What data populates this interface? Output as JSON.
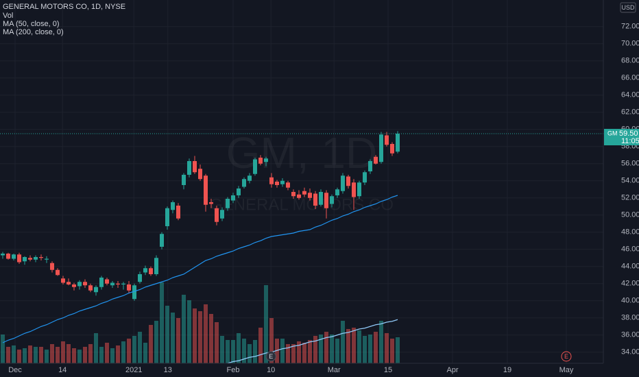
{
  "chart_data": {
    "type": "candlestick",
    "title": "GENERAL MOTORS CO, 1D, NYSE",
    "watermark": "GM, 1D",
    "watermark_subtitle": "GENERAL MOTORS CO",
    "currency": "USD",
    "up_color": "#26a69a",
    "down_color": "#ef5350",
    "grid": true,
    "xlim": [
      -0.5,
      109.5
    ],
    "xticks": [
      {
        "value": 2.25,
        "label": "Dec"
      },
      {
        "value": 10.9,
        "label": "14"
      },
      {
        "value": 23.9,
        "label": "2021"
      },
      {
        "value": 30.1,
        "label": "13"
      },
      {
        "value": 42,
        "label": "Feb"
      },
      {
        "value": 48.9,
        "label": "10"
      },
      {
        "value": 60.4,
        "label": "Mar"
      },
      {
        "value": 70.25,
        "label": "15"
      },
      {
        "value": 82,
        "label": "Apr"
      },
      {
        "value": 92,
        "label": "19"
      },
      {
        "value": 102.75,
        "label": "May"
      }
    ],
    "ylim": [
      31.5,
      75.1
    ],
    "yticks": [
      {
        "value": 34,
        "label": "34.00"
      },
      {
        "value": 36,
        "label": "36.00"
      },
      {
        "value": 38,
        "label": "38.00"
      },
      {
        "value": 40,
        "label": "40.00"
      },
      {
        "value": 42,
        "label": "42.00"
      },
      {
        "value": 44,
        "label": "44.00"
      },
      {
        "value": 46,
        "label": "46.00"
      },
      {
        "value": 48,
        "label": "48.00"
      },
      {
        "value": 50,
        "label": "50.00"
      },
      {
        "value": 52,
        "label": "52.00"
      },
      {
        "value": 54,
        "label": "54.00"
      },
      {
        "value": 56,
        "label": "56.00"
      },
      {
        "value": 58,
        "label": "58.00"
      },
      {
        "value": 60,
        "label": "60.00"
      },
      {
        "value": 62,
        "label": "62.00"
      },
      {
        "value": 64,
        "label": "64.00"
      },
      {
        "value": 66,
        "label": "66.00"
      },
      {
        "value": 68,
        "label": "68.00"
      },
      {
        "value": 70,
        "label": "70.00"
      },
      {
        "value": 72,
        "label": "72.00"
      }
    ],
    "open": [
      45.3,
      45.5,
      44.9,
      45.4,
      44.6,
      45.0,
      44.8,
      45.1,
      44.8,
      44.4,
      43.6,
      42.6,
      42.2,
      41.9,
      41.7,
      42.2,
      41.8,
      41.0,
      41.6,
      42.5,
      41.8,
      42.0,
      41.9,
      41.9,
      40.2,
      42.2,
      43.3,
      43.8,
      43.1,
      46.3,
      48.7,
      50.6,
      51.1,
      53.5,
      54.7,
      56.3,
      55.4,
      54.6,
      51.5,
      50.8,
      49.6,
      50.8,
      51.7,
      52.3,
      53.3,
      54.0,
      54.8,
      56.7,
      56.2,
      54.4,
      53.9,
      53.6,
      53.8,
      52.7,
      52.4,
      52.8,
      52.6,
      52.5,
      51.2,
      52.6,
      51.3,
      52.3,
      52.8,
      54.5,
      53.8,
      52.2,
      53.8,
      55.1,
      56.8,
      56.2,
      59.3,
      58.3,
      57.4
    ],
    "high": [
      45.7,
      45.6,
      45.5,
      45.6,
      45.2,
      45.3,
      45.3,
      45.4,
      45.2,
      44.6,
      43.8,
      42.9,
      42.6,
      42.1,
      42.4,
      42.5,
      42.0,
      41.8,
      42.9,
      42.7,
      42.3,
      42.3,
      42.2,
      42.3,
      42.0,
      43.4,
      44.1,
      44.0,
      45.3,
      48.0,
      51.0,
      51.7,
      51.4,
      54.9,
      56.6,
      56.9,
      55.9,
      54.8,
      51.9,
      51.1,
      50.9,
      52.1,
      52.6,
      53.4,
      54.4,
      54.9,
      56.7,
      57.0,
      56.8,
      54.9,
      54.1,
      54.3,
      54.0,
      53.0,
      52.9,
      53.2,
      53.1,
      52.8,
      53.0,
      52.9,
      52.4,
      53.2,
      54.9,
      54.7,
      54.2,
      54.0,
      55.2,
      56.5,
      57.0,
      59.7,
      59.7,
      58.5,
      59.8
    ],
    "low": [
      44.9,
      44.8,
      44.7,
      44.3,
      44.2,
      44.6,
      44.5,
      44.7,
      44.4,
      43.3,
      42.9,
      41.9,
      41.8,
      41.2,
      41.3,
      41.5,
      41.0,
      40.6,
      41.3,
      41.8,
      41.5,
      41.5,
      41.3,
      40.9,
      40.0,
      42.0,
      43.0,
      42.9,
      42.9,
      46.0,
      48.3,
      50.2,
      49.4,
      53.0,
      54.4,
      54.8,
      54.0,
      50.4,
      50.8,
      48.8,
      49.3,
      50.5,
      51.4,
      52.0,
      53.1,
      53.7,
      54.6,
      55.8,
      55.7,
      53.2,
      53.2,
      53.3,
      52.9,
      51.9,
      51.8,
      52.1,
      51.7,
      50.7,
      51.0,
      49.6,
      50.9,
      52.0,
      52.5,
      53.1,
      50.6,
      51.9,
      53.5,
      54.8,
      55.9,
      56.0,
      58.0,
      56.9,
      57.2
    ],
    "close": [
      45.5,
      44.9,
      45.4,
      44.5,
      45.1,
      44.8,
      45.1,
      45.0,
      44.9,
      43.6,
      43.0,
      42.1,
      41.9,
      41.6,
      42.2,
      41.8,
      41.2,
      41.6,
      42.7,
      42.0,
      42.1,
      41.9,
      42.0,
      41.2,
      41.8,
      43.1,
      43.8,
      43.1,
      45.0,
      47.8,
      50.8,
      51.5,
      49.6,
      54.7,
      56.3,
      55.0,
      54.2,
      51.2,
      51.3,
      49.2,
      50.6,
      51.9,
      52.3,
      53.1,
      54.2,
      54.6,
      56.5,
      56.0,
      56.6,
      53.6,
      53.5,
      54.0,
      53.2,
      52.2,
      52.0,
      52.4,
      52.0,
      51.1,
      52.7,
      50.8,
      52.2,
      53.0,
      54.6,
      53.4,
      52.1,
      53.8,
      55.0,
      56.3,
      56.0,
      59.4,
      58.2,
      57.2,
      59.5
    ],
    "volume": {
      "name": "Vol",
      "values": [
        21,
        12,
        13,
        10,
        11,
        13,
        12,
        12,
        10,
        14,
        12,
        16,
        14,
        11,
        10,
        12,
        14,
        22,
        12,
        15,
        11,
        13,
        16,
        18,
        20,
        23,
        15,
        28,
        31,
        59,
        42,
        37,
        33,
        50,
        46,
        40,
        38,
        43,
        36,
        30,
        20,
        17,
        17,
        22,
        18,
        14,
        17,
        26,
        57,
        33,
        18,
        18,
        14,
        14,
        16,
        15,
        17,
        20,
        21,
        23,
        21,
        18,
        31,
        25,
        26,
        24,
        20,
        21,
        23,
        31,
        22,
        18,
        19
      ]
    },
    "series": [
      {
        "name": "MA (50, close, 0)",
        "color": "#2196f3",
        "values": [
          35.1,
          35.4,
          35.6,
          35.9,
          36.2,
          36.4,
          36.7,
          37.0,
          37.2,
          37.5,
          37.8,
          38.0,
          38.3,
          38.5,
          38.8,
          39.0,
          39.2,
          39.4,
          39.7,
          39.9,
          40.2,
          40.4,
          40.6,
          40.9,
          41.1,
          41.3,
          41.6,
          41.8,
          42.0,
          42.2,
          42.4,
          42.7,
          42.9,
          43.1,
          43.5,
          43.9,
          44.3,
          44.7,
          44.9,
          45.2,
          45.4,
          45.6,
          45.8,
          46.1,
          46.3,
          46.5,
          46.8,
          47.0,
          47.3,
          47.5,
          47.6,
          47.7,
          47.8,
          47.9,
          48.1,
          48.2,
          48.3,
          48.6,
          48.8,
          49.1,
          49.4,
          49.6,
          49.9,
          50.1,
          50.4,
          50.6,
          50.9,
          51.1,
          51.3,
          51.6,
          51.8,
          52.1,
          52.3
        ]
      },
      {
        "name": "MA (200, close, 0)",
        "color": "#90caf9",
        "values": [
          null,
          null,
          null,
          null,
          null,
          null,
          null,
          null,
          null,
          null,
          null,
          null,
          null,
          null,
          null,
          null,
          null,
          null,
          null,
          null,
          null,
          null,
          null,
          null,
          null,
          null,
          null,
          null,
          null,
          null,
          null,
          null,
          null,
          null,
          null,
          null,
          null,
          null,
          null,
          null,
          null,
          32.7,
          32.9,
          33.0,
          33.2,
          33.4,
          33.5,
          33.7,
          33.9,
          34.0,
          34.2,
          34.4,
          34.5,
          34.7,
          34.8,
          35.0,
          35.2,
          35.3,
          35.5,
          35.7,
          35.8,
          36.0,
          36.2,
          36.3,
          36.5,
          36.7,
          36.8,
          37.0,
          37.2,
          37.3,
          37.5,
          37.6,
          37.8
        ]
      }
    ],
    "last_price": {
      "symbol": "GM",
      "value": 59.5,
      "label": "59.50",
      "countdown": "11:05"
    },
    "events": [
      {
        "label": "E",
        "x": 48.9
      },
      {
        "label": "E",
        "x": 102.75
      }
    ]
  }
}
